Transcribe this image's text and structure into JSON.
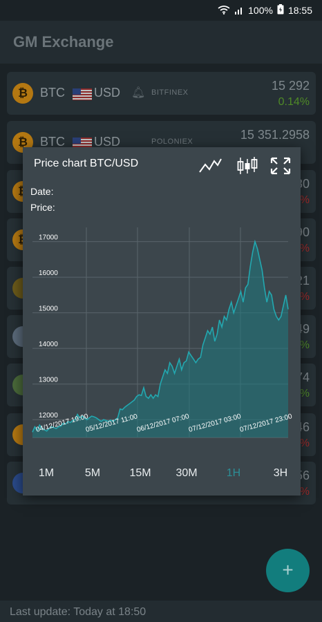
{
  "status": {
    "battery_percent": "100%",
    "time": "18:55"
  },
  "app": {
    "title": "GM Exchange"
  },
  "rows": [
    {
      "base": "BTC",
      "quote": "USD",
      "exchange": "BITFINEX",
      "price": "15 292",
      "change": "0.14%",
      "trend": "up"
    },
    {
      "base": "BTC",
      "quote": "USD",
      "exchange": "POLONIEX",
      "price": "15 351.2958",
      "change": "",
      "trend": "up"
    }
  ],
  "row_right_fragments": [
    {
      "value": "80",
      "change": "%"
    },
    {
      "value": "90",
      "change": "%"
    },
    {
      "value": "21",
      "change": "%"
    },
    {
      "value": "49",
      "change": "%"
    },
    {
      "value": "74",
      "change": "%"
    },
    {
      "value": "46",
      "change": "%"
    },
    {
      "value": "56",
      "change": "%"
    }
  ],
  "dialog": {
    "title": "Price chart BTC/USD",
    "icons": [
      "line-chart-icon",
      "candlestick-icon",
      "fullscreen-icon"
    ],
    "date_label": "Date:",
    "price_label": "Price:"
  },
  "timeframes": [
    "1M",
    "5M",
    "15M",
    "30M",
    "1H",
    "3H"
  ],
  "active_timeframe": "1H",
  "footer": {
    "last_update": "Last update: Today at 18:50"
  },
  "colors": {
    "accent": "#2c8f97",
    "up": "#4f8a27",
    "down": "#a12929",
    "area": "#1e7a80"
  },
  "chart_data": {
    "type": "area",
    "title": "",
    "xlabel": "",
    "ylabel": "",
    "ylim": [
      11500,
      17400
    ],
    "yticks": [
      12000,
      13000,
      14000,
      15000,
      16000,
      17000
    ],
    "x_tick_labels": [
      "04/12/2017 19:00",
      "05/12/2017 11:00",
      "06/12/2017 07:00",
      "07/12/2017 03:00",
      "07/12/2017 23:00"
    ],
    "series": [
      {
        "name": "",
        "values": [
          11650,
          11800,
          11700,
          11850,
          11750,
          11720,
          11680,
          11750,
          11800,
          11780,
          11750,
          11800,
          11820,
          11900,
          11880,
          11950,
          11920,
          11980,
          12000,
          12150,
          12050,
          12100,
          12050,
          12000,
          12050,
          12100,
          12080,
          12050,
          12000,
          11950,
          12000,
          11980,
          11950,
          11990,
          11950,
          12000,
          12050,
          12300,
          12280,
          12350,
          12400,
          12450,
          12500,
          12550,
          12650,
          12700,
          12680,
          12900,
          12650,
          12600,
          12700,
          12600,
          12700,
          12650,
          13000,
          13200,
          13400,
          13300,
          13600,
          13500,
          13300,
          13500,
          13700,
          13400,
          13600,
          13650,
          13900,
          13800,
          13700,
          13600,
          13700,
          13750,
          14100,
          14300,
          14500,
          14400,
          14600,
          14200,
          14400,
          14800,
          14600,
          14900,
          14800,
          15100,
          15300,
          15000,
          15200,
          15400,
          15600,
          15300,
          15700,
          15800,
          16300,
          16700,
          17000,
          16800,
          16500,
          16200,
          15700,
          15300,
          15600,
          15500,
          15100,
          14900,
          14800,
          14900,
          15200,
          15500,
          15100
        ]
      }
    ]
  }
}
